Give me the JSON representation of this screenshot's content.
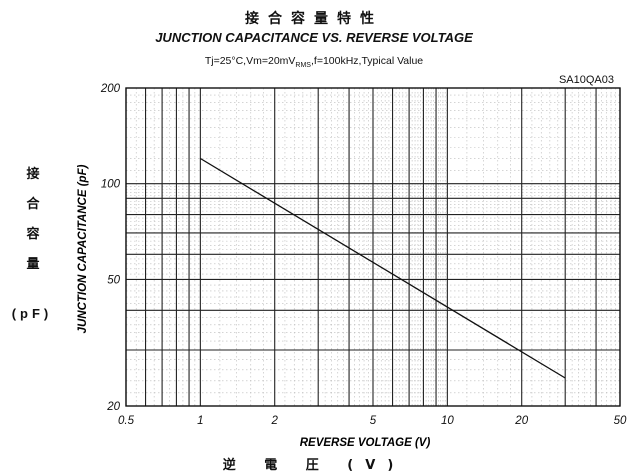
{
  "header": {
    "title_jp": "接合容量特性",
    "title_en": "JUNCTION CAPACITANCE VS. REVERSE VOLTAGE",
    "conditions": {
      "prefix": "Tj=25°C,Vm=20mV",
      "subscript": "RMS",
      "suffix": ",f=100kHz,Typical Value"
    },
    "part_number": "SA10QA03"
  },
  "axis_labels": {
    "y_jp_chars": [
      "接",
      "合",
      "容",
      "量"
    ],
    "y_unit": "(pF)",
    "x_jp": "逆 電 圧 (V)"
  },
  "chart_data": {
    "type": "line",
    "title": "JUNCTION CAPACITANCE VS. REVERSE VOLTAGE",
    "xlabel": "REVERSE VOLTAGE (V)",
    "ylabel": "JUNCTION CAPACITANCE (pF)",
    "x_scale": "log",
    "y_scale": "log",
    "xlim": [
      0.5,
      50
    ],
    "ylim": [
      20,
      200
    ],
    "x_ticks": [
      {
        "value": 0.5,
        "label": "0.5"
      },
      {
        "value": 1,
        "label": "1"
      },
      {
        "value": 2,
        "label": "2"
      },
      {
        "value": 5,
        "label": "5"
      },
      {
        "value": 10,
        "label": "10"
      },
      {
        "value": 20,
        "label": "20"
      },
      {
        "value": 50,
        "label": "50"
      }
    ],
    "y_ticks": [
      {
        "value": 20,
        "label": "20"
      },
      {
        "value": 50,
        "label": "50"
      },
      {
        "value": 100,
        "label": "100"
      },
      {
        "value": 200,
        "label": "200"
      }
    ],
    "x_major_grid": [
      0.5,
      0.6,
      0.7,
      0.8,
      0.9,
      1,
      2,
      3,
      4,
      5,
      6,
      7,
      8,
      9,
      10,
      20,
      30,
      40,
      50
    ],
    "y_major_grid": [
      20,
      30,
      40,
      50,
      60,
      70,
      80,
      90,
      100,
      200
    ],
    "grid": true,
    "series": [
      {
        "x": [
          1,
          30
        ],
        "y": [
          120,
          24.5
        ]
      }
    ]
  }
}
